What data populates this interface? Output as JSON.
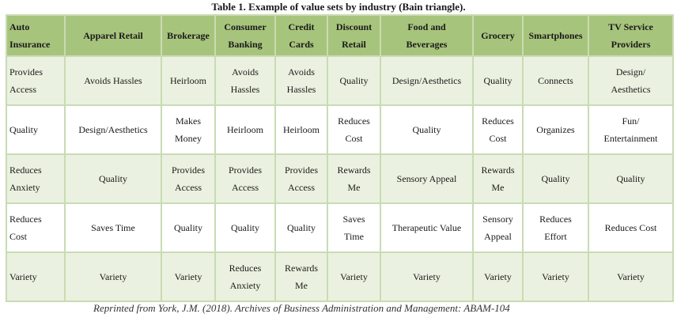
{
  "caption": "Table 1. Example of value sets by industry (Bain triangle).",
  "headers": [
    [
      "Auto",
      "Insurance"
    ],
    [
      "Apparel Retail",
      ""
    ],
    [
      "Brokerage",
      ""
    ],
    [
      "Consumer",
      "Banking"
    ],
    [
      "Credit",
      "Cards"
    ],
    [
      "Discount",
      "Retail"
    ],
    [
      "Food and",
      "Beverages"
    ],
    [
      "Grocery",
      ""
    ],
    [
      "Smartphones",
      ""
    ],
    [
      "TV Service",
      "Providers"
    ]
  ],
  "rows": [
    [
      [
        "Provides",
        "Access"
      ],
      [
        "Avoids Hassles",
        ""
      ],
      [
        "Heirloom",
        ""
      ],
      [
        "Avoids",
        "Hassles"
      ],
      [
        "Avoids",
        "Hassles"
      ],
      [
        "Quality",
        ""
      ],
      [
        "Design/Aesthetics",
        ""
      ],
      [
        "Quality",
        ""
      ],
      [
        "Connects",
        ""
      ],
      [
        "Design/",
        "Aesthetics"
      ]
    ],
    [
      [
        "Quality",
        ""
      ],
      [
        "Design/Aesthetics",
        ""
      ],
      [
        "Makes",
        "Money"
      ],
      [
        "Heirloom",
        ""
      ],
      [
        "Heirloom",
        ""
      ],
      [
        "Reduces",
        "Cost"
      ],
      [
        "Quality",
        ""
      ],
      [
        "Reduces",
        "Cost"
      ],
      [
        "Organizes",
        ""
      ],
      [
        "Fun/",
        "Entertainment"
      ]
    ],
    [
      [
        "Reduces",
        "Anxiety"
      ],
      [
        "Quality",
        ""
      ],
      [
        "Provides",
        "Access"
      ],
      [
        "Provides",
        "Access"
      ],
      [
        "Provides",
        "Access"
      ],
      [
        "Rewards",
        "Me"
      ],
      [
        "Sensory Appeal",
        ""
      ],
      [
        "Rewards",
        "Me"
      ],
      [
        "Quality",
        ""
      ],
      [
        "Quality",
        ""
      ]
    ],
    [
      [
        "Reduces",
        "Cost"
      ],
      [
        "Saves Time",
        ""
      ],
      [
        "Quality",
        ""
      ],
      [
        "Quality",
        ""
      ],
      [
        "Quality",
        ""
      ],
      [
        "Saves",
        "Time"
      ],
      [
        "Therapeutic Value",
        ""
      ],
      [
        "Sensory",
        "Appeal"
      ],
      [
        "Reduces",
        "Effort"
      ],
      [
        "Reduces Cost",
        ""
      ]
    ],
    [
      [
        "Variety",
        ""
      ],
      [
        "Variety",
        ""
      ],
      [
        "Variety",
        ""
      ],
      [
        "Reduces",
        "Anxiety"
      ],
      [
        "Rewards",
        "Me"
      ],
      [
        "Variety",
        ""
      ],
      [
        "Variety",
        ""
      ],
      [
        "Variety",
        ""
      ],
      [
        "Variety",
        ""
      ],
      [
        "Variety",
        ""
      ]
    ]
  ],
  "credit": "Reprinted from York, J.M. (2018). Archives of Business Administration and Management: ABAM-104",
  "colors": {
    "header_bg": "#a7c47c",
    "band_bg": "#ebf1e0",
    "border": "#c9dbb3"
  }
}
